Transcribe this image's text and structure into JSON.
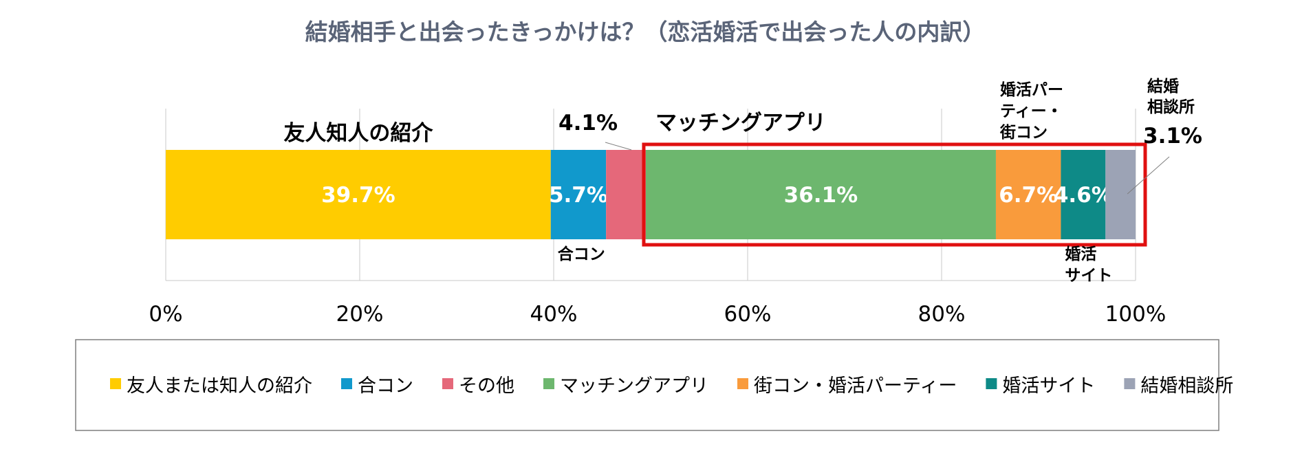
{
  "chart_data": {
    "type": "bar",
    "orientation": "horizontal-stacked",
    "title": "結婚相手と出会ったきっかけは？（恋活婚活で出会った人の内訳）",
    "xlim": [
      0,
      100
    ],
    "x_ticks": [
      "0%",
      "20%",
      "40%",
      "60%",
      "80%",
      "100%"
    ],
    "grid": "vertical",
    "legend_position": "bottom",
    "series": [
      {
        "name": "友人または知人の紹介",
        "value": 39.7,
        "color": "#FFCC00",
        "data_label": "39.7%",
        "label_inside": true
      },
      {
        "name": "合コン",
        "value": 5.7,
        "color": "#1199CC",
        "data_label": "5.7%",
        "label_inside": true
      },
      {
        "name": "その他",
        "value": 4.1,
        "color": "#E5687A",
        "data_label": "4.1%",
        "label_inside": false
      },
      {
        "name": "マッチングアプリ",
        "value": 36.1,
        "color": "#6DB76E",
        "data_label": "36.1%",
        "label_inside": true
      },
      {
        "name": "街コン・婚活パーティー",
        "value": 6.7,
        "color": "#F99B3C",
        "data_label": "6.7%",
        "label_inside": true
      },
      {
        "name": "婚活サイト",
        "value": 4.6,
        "color": "#0E8A87",
        "data_label": "4.6%",
        "label_inside": true
      },
      {
        "name": "結婚相談所",
        "value": 3.1,
        "color": "#9CA3B5",
        "data_label": "3.1%",
        "label_inside": false
      }
    ],
    "annotations": {
      "friends": "友人知人の紹介",
      "goukon": "合コン",
      "matching": "マッチングアプリ",
      "party": [
        "婚活パー",
        "ティー・",
        "街コン"
      ],
      "site": [
        "婚活",
        "サイト"
      ],
      "agency": [
        "結婚",
        "相談所"
      ]
    },
    "highlight_box_color": "#E01010"
  }
}
